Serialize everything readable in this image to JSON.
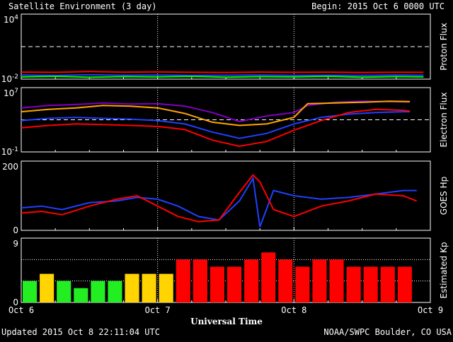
{
  "header": {
    "title": "Satellite Environment (3 day)",
    "begin": "Begin:  2015 Oct 6 0000 UTC"
  },
  "footer": {
    "updated": "Updated 2015 Oct  8 22:11:04 UTC",
    "credit": "NOAA/SWPC Boulder, CO USA"
  },
  "x_axis": {
    "label": "Universal Time",
    "ticks": [
      "Oct 6",
      "Oct 7",
      "Oct 8",
      "Oct 9"
    ]
  },
  "colors": {
    "red": "#ff0000",
    "blue": "#2040ff",
    "green": "#00ff00",
    "orange": "#ffa500",
    "purple": "#8000c0",
    "yellow": "#ffd400",
    "kp_green": "#22ee22"
  },
  "chart_data": [
    {
      "type": "line",
      "ylabel": "Proton Flux",
      "yscale": "log",
      "ylim": [
        0.01,
        10000
      ],
      "yticks": [
        {
          "base": "10",
          "exp": "4"
        },
        {
          "base": "10",
          "exp": "-2"
        }
      ],
      "threshold": 10,
      "x_range_days": [
        0,
        3
      ],
      "series": [
        {
          "color": "red",
          "x": [
            0,
            0.25,
            0.5,
            0.75,
            1,
            1.25,
            1.5,
            1.75,
            2,
            2.25,
            2.5,
            2.75,
            2.95
          ],
          "y": [
            0.045,
            0.042,
            0.05,
            0.044,
            0.046,
            0.043,
            0.041,
            0.045,
            0.042,
            0.044,
            0.041,
            0.043,
            0.042
          ]
        },
        {
          "color": "blue",
          "x": [
            0,
            0.25,
            0.5,
            0.75,
            1,
            1.25,
            1.5,
            1.75,
            2,
            2.25,
            2.5,
            2.75,
            2.95
          ],
          "y": [
            0.024,
            0.022,
            0.025,
            0.023,
            0.024,
            0.022,
            0.023,
            0.024,
            0.022,
            0.023,
            0.022,
            0.024,
            0.023
          ]
        },
        {
          "color": "green",
          "x": [
            0,
            0.25,
            0.5,
            0.75,
            1,
            1.25,
            1.5,
            1.75,
            2,
            2.25,
            2.5,
            2.75,
            2.95
          ],
          "y": [
            0.016,
            0.018,
            0.015,
            0.017,
            0.016,
            0.018,
            0.015,
            0.017,
            0.016,
            0.018,
            0.015,
            0.017,
            0.016
          ]
        }
      ]
    },
    {
      "type": "line",
      "ylabel": "Electron Flux",
      "yscale": "log",
      "ylim": [
        0.1,
        10000000
      ],
      "yticks": [
        {
          "base": "10",
          "exp": "7"
        },
        {
          "base": "10",
          "exp": "-1"
        }
      ],
      "threshold": 1000,
      "x_range_days": [
        0,
        3
      ],
      "series": [
        {
          "color": "purple",
          "x": [
            0,
            0.2,
            0.4,
            0.6,
            0.8,
            1.0,
            1.2,
            1.4,
            1.6,
            1.8,
            2.0,
            2.1,
            2.3,
            2.5,
            2.7,
            2.85
          ],
          "y": [
            30000,
            60000,
            80000,
            120000,
            90000,
            100000,
            50000,
            8000,
            600,
            3000,
            8000,
            60000,
            150000,
            200000,
            180000,
            160000
          ]
        },
        {
          "color": "orange",
          "x": [
            0,
            0.2,
            0.4,
            0.6,
            0.8,
            1.0,
            1.2,
            1.4,
            1.6,
            1.8,
            2.0,
            2.1,
            2.3,
            2.5,
            2.7,
            2.85
          ],
          "y": [
            10000,
            20000,
            30000,
            60000,
            50000,
            30000,
            6000,
            500,
            200,
            300,
            2000,
            100000,
            120000,
            150000,
            200000,
            180000
          ]
        },
        {
          "color": "blue",
          "x": [
            0,
            0.2,
            0.4,
            0.6,
            0.8,
            1.0,
            1.2,
            1.4,
            1.6,
            1.8,
            2.0,
            2.2,
            2.4,
            2.6,
            2.8,
            2.85
          ],
          "y": [
            800,
            1500,
            2000,
            1500,
            1200,
            800,
            300,
            30,
            5,
            20,
            300,
            2000,
            5000,
            8000,
            10000,
            10000
          ]
        },
        {
          "color": "red",
          "x": [
            0,
            0.2,
            0.4,
            0.6,
            0.8,
            1.0,
            1.2,
            1.4,
            1.6,
            1.8,
            2.0,
            2.2,
            2.4,
            2.6,
            2.8,
            2.85
          ],
          "y": [
            100,
            200,
            300,
            250,
            200,
            150,
            60,
            3,
            0.5,
            2,
            50,
            800,
            8000,
            20000,
            15000,
            12000
          ]
        }
      ]
    },
    {
      "type": "line",
      "ylabel": "GOES Hp",
      "yscale": "linear",
      "ylim": [
        0,
        200
      ],
      "yticks": [
        "200",
        "0"
      ],
      "x_range_days": [
        0,
        3
      ],
      "series": [
        {
          "color": "blue",
          "x": [
            0,
            0.15,
            0.3,
            0.5,
            0.7,
            0.85,
            1.0,
            1.15,
            1.3,
            1.45,
            1.6,
            1.7,
            1.75,
            1.85,
            2.0,
            2.2,
            2.4,
            2.6,
            2.8,
            2.9
          ],
          "y": [
            65,
            70,
            60,
            80,
            85,
            95,
            90,
            70,
            40,
            30,
            85,
            150,
            10,
            115,
            100,
            90,
            95,
            105,
            115,
            115
          ]
        },
        {
          "color": "red",
          "x": [
            0,
            0.15,
            0.3,
            0.5,
            0.7,
            0.85,
            1.0,
            1.15,
            1.3,
            1.45,
            1.6,
            1.7,
            1.75,
            1.85,
            2.0,
            2.2,
            2.4,
            2.6,
            2.8,
            2.9
          ],
          "y": [
            50,
            55,
            45,
            70,
            90,
            100,
            70,
            40,
            25,
            30,
            110,
            160,
            140,
            60,
            40,
            70,
            85,
            105,
            100,
            85
          ]
        }
      ]
    },
    {
      "type": "bar",
      "ylabel": "Estimated Kp",
      "ylim": [
        0,
        9
      ],
      "yticks": [
        "9",
        "0"
      ],
      "bar_width_hours": 3,
      "values": [
        3,
        4,
        3,
        2,
        3,
        3,
        4,
        4,
        4,
        6,
        6,
        5,
        5,
        6,
        7,
        6,
        5,
        6,
        6,
        5,
        5,
        5,
        5
      ],
      "levels": [
        "green",
        "yellow",
        "green",
        "green",
        "green",
        "green",
        "yellow",
        "yellow",
        "yellow",
        "red",
        "red",
        "red",
        "red",
        "red",
        "red",
        "red",
        "red",
        "red",
        "red",
        "red",
        "red",
        "red",
        "red"
      ]
    }
  ]
}
